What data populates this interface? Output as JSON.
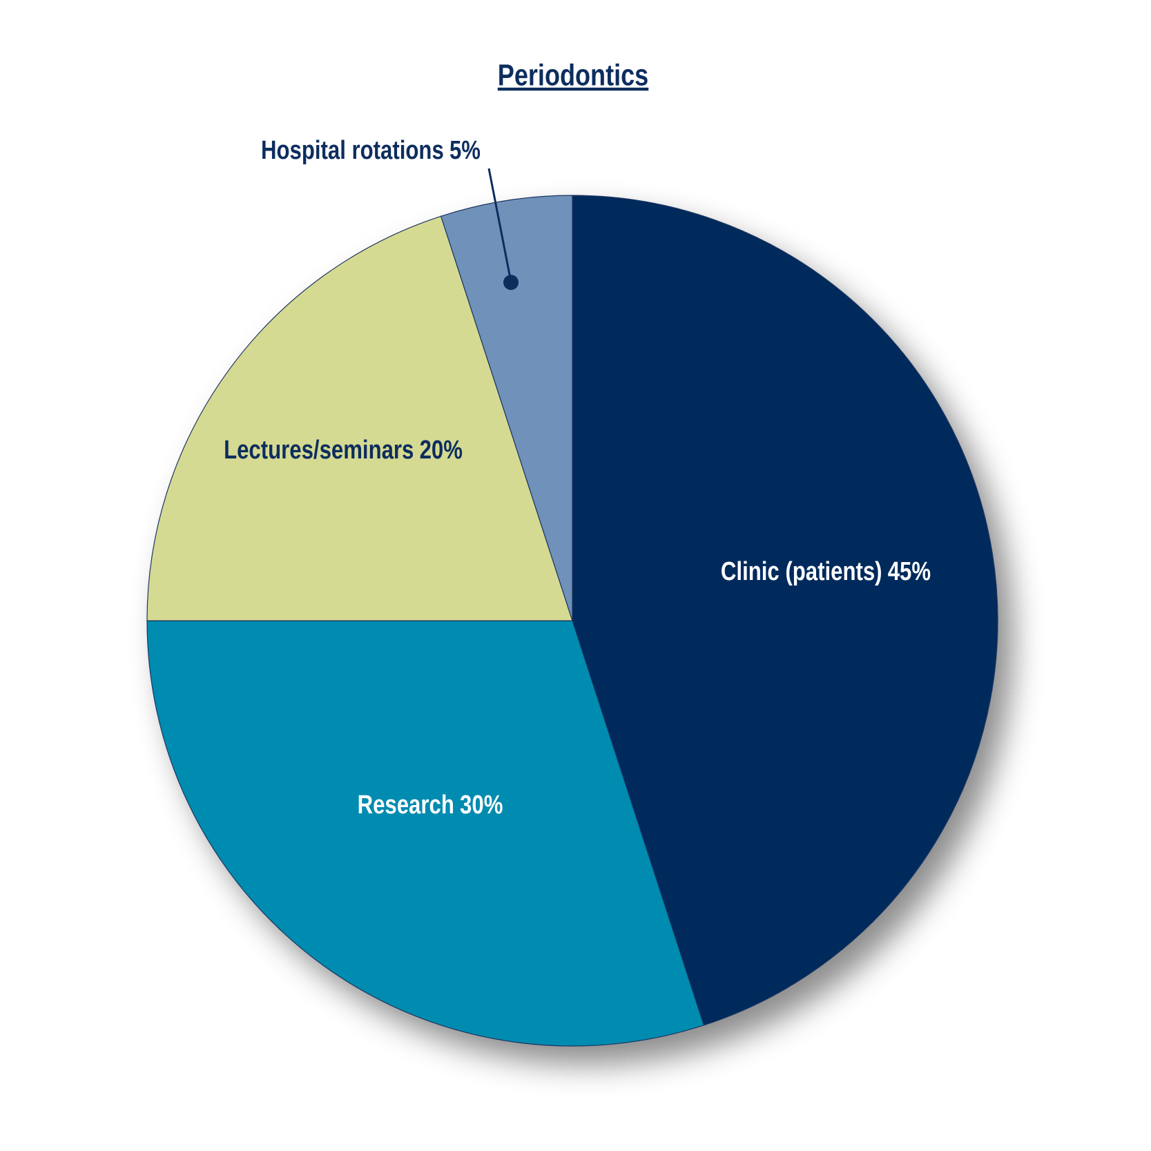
{
  "chart_data": {
    "type": "pie",
    "title": "Periodontics",
    "categories": [
      "Clinic (patients)",
      "Research",
      "Lectures/seminars",
      "Hospital rotations"
    ],
    "values": [
      45,
      30,
      20,
      5
    ],
    "value_labels": [
      "45%",
      "30%",
      "20%",
      "5%"
    ],
    "colors": [
      "#002a5c",
      "#008bb0",
      "#d5da92",
      "#6f91ba"
    ]
  }
}
